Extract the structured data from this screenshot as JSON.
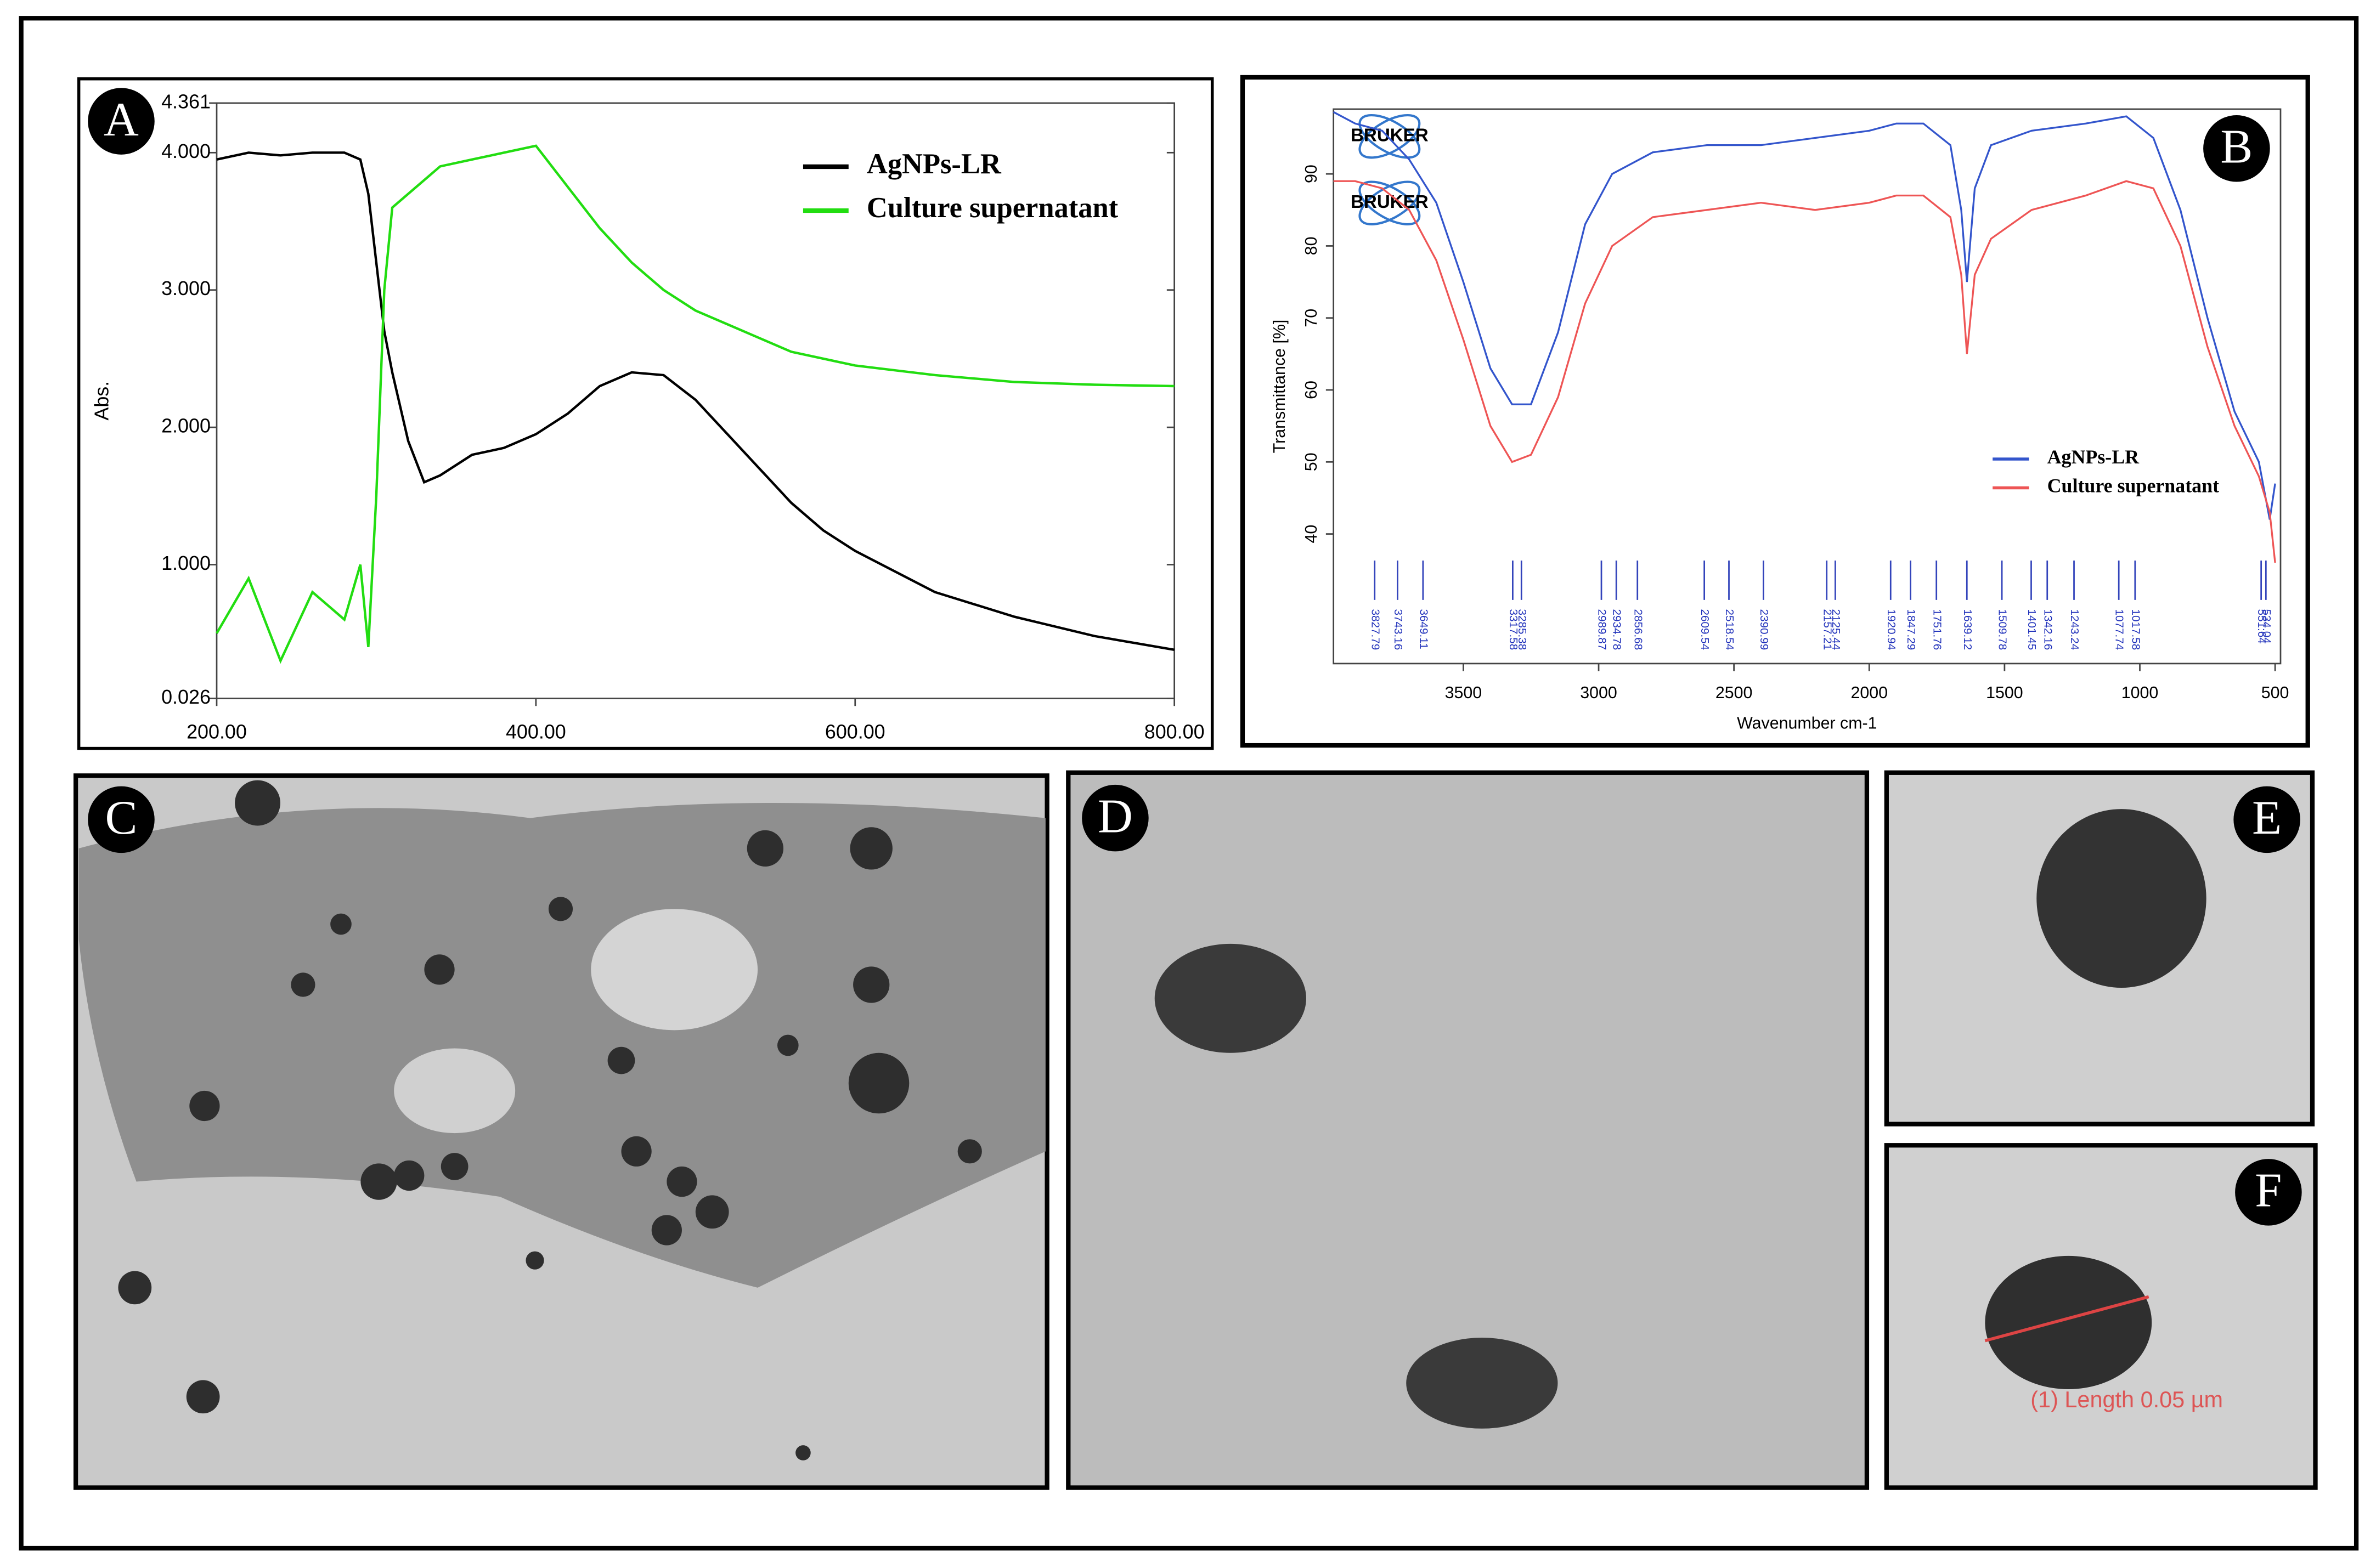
{
  "chart_data": [
    {
      "type": "line",
      "panel_label": "A",
      "ylabel": "Abs.",
      "legend": "upper right",
      "x": [
        200,
        220,
        240,
        260,
        280,
        290,
        295,
        300,
        305,
        310,
        320,
        330,
        340,
        360,
        380,
        400,
        420,
        440,
        460,
        480,
        500,
        520,
        540,
        560,
        580,
        600,
        650,
        700,
        750,
        800
      ],
      "xlim": [
        200,
        800
      ],
      "xticks": [
        {
          "value": 200,
          "label": "200.00"
        },
        {
          "value": 400,
          "label": "400.00"
        },
        {
          "value": 600,
          "label": "600.00"
        },
        {
          "value": 800,
          "label": "800.00"
        }
      ],
      "ylim": [
        0.026,
        4.361
      ],
      "yticks": [
        0.026,
        {
          "value": 1,
          "label": "1.000"
        },
        {
          "value": 2,
          "label": "2.000"
        },
        {
          "value": 3,
          "label": "3.000"
        },
        {
          "value": 4,
          "label": "4.000"
        },
        4.361
      ],
      "series": [
        {
          "name": "AgNPs-LR",
          "color": "#000000",
          "values": [
            3.95,
            4.0,
            3.98,
            4.0,
            4.0,
            3.95,
            3.7,
            3.2,
            2.7,
            2.4,
            1.9,
            1.6,
            1.65,
            1.8,
            1.85,
            1.95,
            2.1,
            2.3,
            2.4,
            2.38,
            2.2,
            1.95,
            1.7,
            1.45,
            1.25,
            1.1,
            0.8,
            0.62,
            0.48,
            0.38
          ]
        },
        {
          "name": "Culture supernatant",
          "color": "#22dd11",
          "values": [
            0.5,
            0.9,
            0.3,
            0.8,
            0.6,
            1.0,
            0.4,
            1.5,
            3.0,
            3.6,
            3.7,
            3.8,
            3.9,
            3.95,
            4.0,
            4.05,
            3.75,
            3.45,
            3.2,
            3.0,
            2.85,
            2.75,
            2.65,
            2.55,
            2.5,
            2.45,
            2.38,
            2.33,
            2.31,
            2.3
          ]
        }
      ]
    },
    {
      "type": "line",
      "panel_label": "B",
      "ylabel": "Transmittance [%]",
      "xlabel": "Wavenumber cm-1",
      "legend": "lower right",
      "watermarks": [
        "BRUKER",
        "BRUKER"
      ],
      "x": [
        3980,
        3900,
        3800,
        3700,
        3600,
        3500,
        3400,
        3320,
        3250,
        3150,
        3050,
        2950,
        2800,
        2600,
        2400,
        2200,
        2000,
        1900,
        1800,
        1700,
        1660,
        1639,
        1610,
        1550,
        1400,
        1200,
        1050,
        950,
        850,
        750,
        650,
        560,
        520,
        500
      ],
      "xlim": [
        3980,
        480
      ],
      "xticks": [
        3500,
        3000,
        2500,
        2000,
        1500,
        1000,
        500
      ],
      "ylim": [
        22,
        99
      ],
      "yticks": [
        40,
        50,
        60,
        70,
        80,
        90
      ],
      "peaks": [
        3827.79,
        3743.16,
        3649.11,
        3317.58,
        3285.38,
        2989.87,
        2934.78,
        2856.68,
        2609.54,
        2518.54,
        2390.99,
        2157.21,
        2125.44,
        1920.94,
        1847.29,
        1751.76,
        1639.12,
        1509.78,
        1401.45,
        1342.16,
        1243.24,
        1077.74,
        1017.58,
        551.64,
        534.04
      ],
      "series": [
        {
          "name": "AgNPs-LR",
          "color": "#3355cc",
          "values": [
            98.6,
            97,
            96,
            92,
            86,
            75,
            63,
            58,
            58,
            68,
            83,
            90,
            93,
            94,
            94,
            95,
            96,
            97,
            97,
            94,
            85,
            75,
            88,
            94,
            96,
            97,
            98,
            95,
            85,
            70,
            57,
            50,
            42,
            47
          ]
        },
        {
          "name": "Culture supernatant",
          "color": "#ee5555",
          "values": [
            89,
            89,
            88,
            85,
            78,
            67,
            55,
            50,
            51,
            59,
            72,
            80,
            84,
            85,
            86,
            85,
            86,
            87,
            87,
            84,
            76,
            65,
            76,
            81,
            85,
            87,
            89,
            88,
            80,
            66,
            55,
            48,
            43,
            36
          ]
        }
      ]
    }
  ],
  "images": [
    {
      "label": "C"
    },
    {
      "label": "D"
    },
    {
      "label": "E"
    },
    {
      "label": "F",
      "annotation": "(1)  Length 0.05 µm"
    }
  ]
}
